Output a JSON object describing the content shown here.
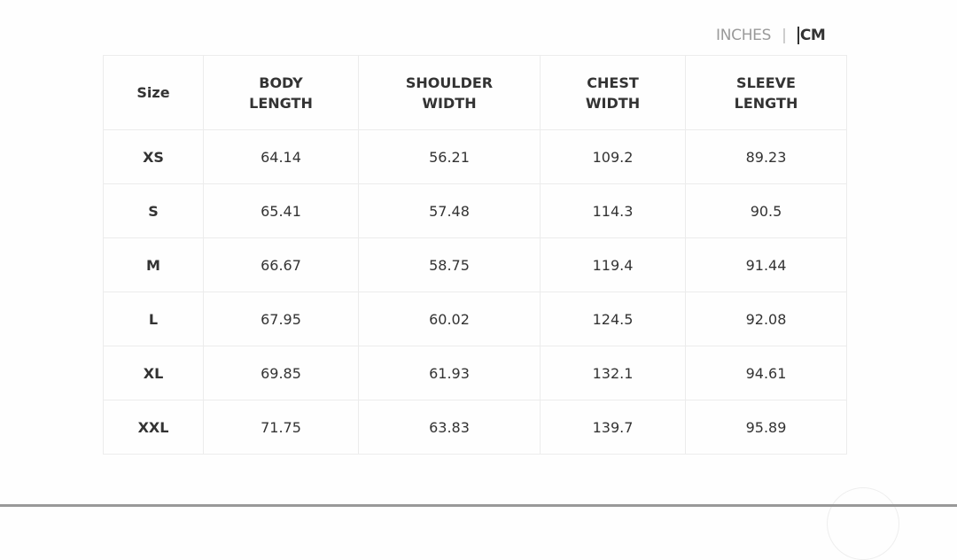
{
  "units": {
    "inches": "INCHES",
    "separator": "|",
    "cm": "CM",
    "selected": "CM"
  },
  "table": {
    "headers": [
      "Size",
      "BODY\nLENGTH",
      "SHOULDER\nWIDTH",
      "CHEST\nWIDTH",
      "SLEEVE\nLENGTH"
    ],
    "rows": [
      [
        "XS",
        "64.14",
        "56.21",
        "109.2",
        "89.23"
      ],
      [
        "S",
        "65.41",
        "57.48",
        "114.3",
        "90.5"
      ],
      [
        "M",
        "66.67",
        "58.75",
        "119.4",
        "91.44"
      ],
      [
        "L",
        "67.95",
        "60.02",
        "124.5",
        "92.08"
      ],
      [
        "XL",
        "69.85",
        "61.93",
        "132.1",
        "94.61"
      ],
      [
        "XXL",
        "71.75",
        "63.83",
        "139.7",
        "95.89"
      ]
    ]
  }
}
